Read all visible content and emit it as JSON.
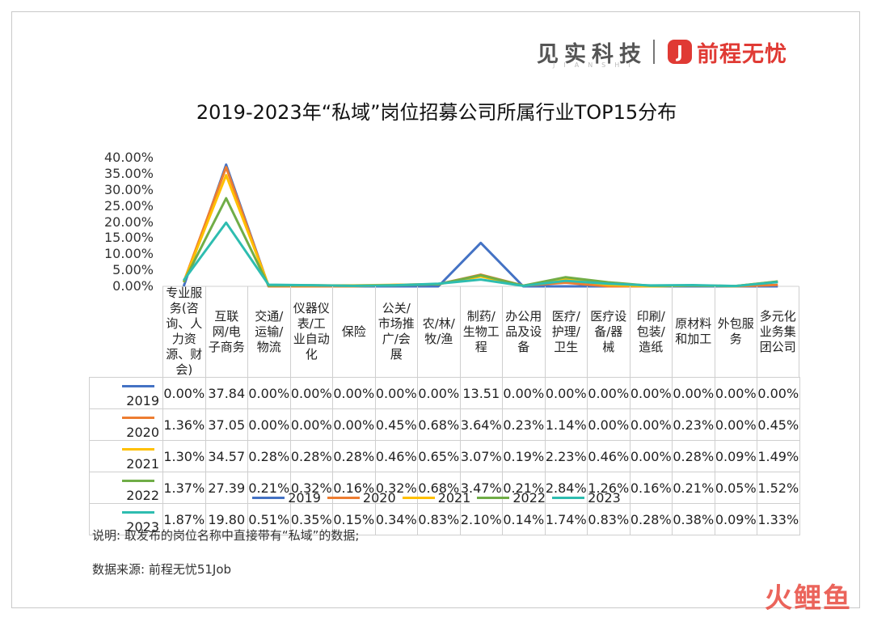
{
  "brand": {
    "jianshi": "见实科技",
    "jianshi_sub": "JIANSHI",
    "logo_glyph": "J",
    "job51": "前程无忧"
  },
  "chart_data": {
    "type": "line",
    "title": "2019-2023年“私域”岗位招募公司所属行业TOP15分布",
    "ylim": [
      0,
      40
    ],
    "y_ticks": [
      "40.00%",
      "35.00%",
      "30.00%",
      "25.00%",
      "20.00%",
      "15.00%",
      "10.00%",
      "5.00%",
      "0.00%"
    ],
    "legend_position": "bottom",
    "categories": [
      "专业服务(咨询、人力资源、财会)",
      "互联网/电子商务",
      "交通/运输/物流",
      "仪器仪表/工业自动化",
      "保险",
      "公关/市场推广/会展",
      "农/林/牧/渔",
      "制药/生物工程",
      "办公用品及设备",
      "医疗/护理/卫生",
      "医疗设备/器械",
      "印刷/包装/造纸",
      "原材料和加工",
      "外包服务",
      "多元化业务集团公司"
    ],
    "category_labels": [
      "专业服务(咨询、人力资源、财会)",
      "互联网/电子商务",
      "交通/运输/物流",
      "仪器仪表/工业自动化",
      "保险",
      "公关/市场推广/会展",
      "农/林/牧/渔",
      "制药/生物工程",
      "办公用品及设备",
      "医疗/护理/卫生",
      "医疗设备/器械",
      "印刷/包装/造纸",
      "原材料和加工",
      "外包服务",
      "多元化业务集团公司"
    ],
    "series": [
      {
        "name": "2019",
        "color": "#4472c4",
        "values": [
          0,
          37.84,
          0,
          0,
          0,
          0,
          0,
          13.51,
          0,
          0,
          0,
          0,
          0,
          0,
          0
        ],
        "labels": [
          "0.00%",
          "37.84",
          "0.00%",
          "0.00%",
          "0.00%",
          "0.00%",
          "0.00%",
          "13.51",
          "0.00%",
          "0.00%",
          "0.00%",
          "0.00%",
          "0.00%",
          "0.00%",
          "0.00%"
        ]
      },
      {
        "name": "2020",
        "color": "#ed7d31",
        "values": [
          1.36,
          37.05,
          0,
          0,
          0,
          0.45,
          0.68,
          3.64,
          0.23,
          1.14,
          0,
          0,
          0.23,
          0,
          0.45
        ],
        "labels": [
          "1.36%",
          "37.05",
          "0.00%",
          "0.00%",
          "0.00%",
          "0.45%",
          "0.68%",
          "3.64%",
          "0.23%",
          "1.14%",
          "0.00%",
          "0.00%",
          "0.23%",
          "0.00%",
          "0.45%"
        ]
      },
      {
        "name": "2021",
        "color": "#ffc000",
        "values": [
          1.3,
          34.57,
          0.28,
          0.28,
          0.28,
          0.46,
          0.65,
          3.07,
          0.19,
          2.23,
          0.46,
          0,
          0.28,
          0.09,
          1.49
        ],
        "labels": [
          "1.30%",
          "34.57",
          "0.28%",
          "0.28%",
          "0.28%",
          "0.46%",
          "0.65%",
          "3.07%",
          "0.19%",
          "2.23%",
          "0.46%",
          "0.00%",
          "0.28%",
          "0.09%",
          "1.49%"
        ]
      },
      {
        "name": "2022",
        "color": "#70ad47",
        "values": [
          1.37,
          27.39,
          0.21,
          0.32,
          0.16,
          0.32,
          0.68,
          3.47,
          0.21,
          2.84,
          1.26,
          0.16,
          0.21,
          0.05,
          1.52
        ],
        "labels": [
          "1.37%",
          "27.39",
          "0.21%",
          "0.32%",
          "0.16%",
          "0.32%",
          "0.68%",
          "3.47%",
          "0.21%",
          "2.84%",
          "1.26%",
          "0.16%",
          "0.21%",
          "0.05%",
          "1.52%"
        ]
      },
      {
        "name": "2023",
        "color": "#2ebdb0",
        "values": [
          1.87,
          19.8,
          0.51,
          0.35,
          0.15,
          0.34,
          0.83,
          2.1,
          0.14,
          1.74,
          0.83,
          0.28,
          0.38,
          0.09,
          1.33
        ],
        "labels": [
          "1.87%",
          "19.80",
          "0.51%",
          "0.35%",
          "0.15%",
          "0.34%",
          "0.83%",
          "2.10%",
          "0.14%",
          "1.74%",
          "0.83%",
          "0.28%",
          "0.38%",
          "0.09%",
          "1.33%"
        ]
      }
    ]
  },
  "notes": {
    "explain": "说明: 取发布的岗位名称中直接带有“私域”的数据;",
    "source": "数据来源: 前程无忧51Job"
  },
  "watermark": "火鲤鱼"
}
